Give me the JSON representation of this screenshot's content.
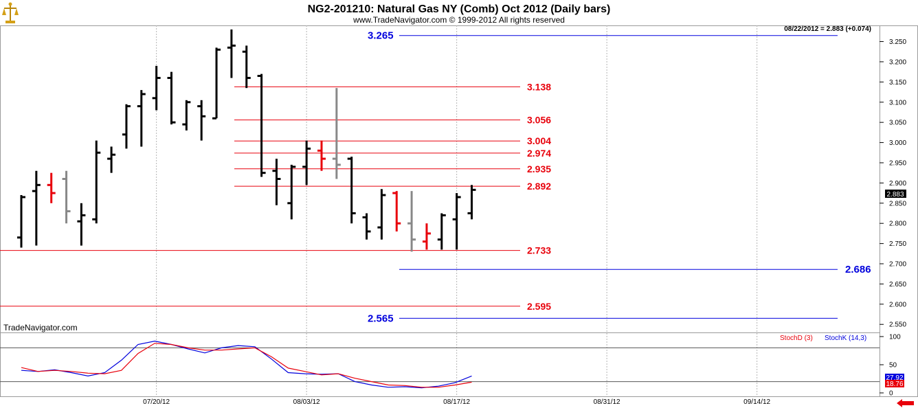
{
  "header": {
    "title": "NG2-201210:  Natural Gas NY (Comb) Oct 2012  (Daily bars)",
    "copyright": "www.TradeNavigator.com © 1999-2012 All rights reserved",
    "last_quote": "08/22/2012 = 2.883 (+0.074)",
    "watermark": "TradeNavigator.com",
    "last_price_tag": "2.883"
  },
  "colors": {
    "up": "#000000",
    "neutral": "#888888",
    "down": "#e8000b",
    "blue_level": "#0000dd",
    "red_level": "#e8000b",
    "stoch_k": "#0000dd",
    "stoch_d": "#e8000b",
    "grid": "#b4b4b4"
  },
  "chart_data": [
    {
      "type": "ohlc",
      "title": "NG2-201210:  Natural Gas NY (Comb) Oct 2012  (Daily bars)",
      "x_tick_labels": [
        "07/20/12",
        "08/03/12",
        "08/17/12",
        "08/31/12",
        "09/14/12"
      ],
      "y_tick_labels": [
        "2.550",
        "2.600",
        "2.650",
        "2.700",
        "2.750",
        "2.800",
        "2.850",
        "2.900",
        "2.950",
        "3.000",
        "3.050",
        "3.100",
        "3.150",
        "3.200",
        "3.250"
      ],
      "ylim": [
        2.53,
        3.29
      ],
      "grid": true,
      "bars": [
        {
          "date": "07/09/12",
          "o": 2.765,
          "h": 2.87,
          "l": 2.74,
          "c": 2.865,
          "color": "black"
        },
        {
          "date": "07/10/12",
          "o": 2.88,
          "h": 2.93,
          "l": 2.745,
          "c": 2.895,
          "color": "black"
        },
        {
          "date": "07/11/12",
          "o": 2.895,
          "h": 2.925,
          "l": 2.85,
          "c": 2.875,
          "color": "red"
        },
        {
          "date": "07/12/12",
          "o": 2.91,
          "h": 2.93,
          "l": 2.8,
          "c": 2.83,
          "color": "gray"
        },
        {
          "date": "07/13/12",
          "o": 2.805,
          "h": 2.85,
          "l": 2.745,
          "c": 2.82,
          "color": "black"
        },
        {
          "date": "07/16/12",
          "o": 2.81,
          "h": 3.005,
          "l": 2.8,
          "c": 2.975,
          "color": "black"
        },
        {
          "date": "07/17/12",
          "o": 2.96,
          "h": 2.99,
          "l": 2.925,
          "c": 2.97,
          "color": "black"
        },
        {
          "date": "07/18/12",
          "o": 3.02,
          "h": 3.095,
          "l": 2.985,
          "c": 3.09,
          "color": "black"
        },
        {
          "date": "07/19/12",
          "o": 3.09,
          "h": 3.13,
          "l": 2.99,
          "c": 3.12,
          "color": "black"
        },
        {
          "date": "07/20/12",
          "o": 3.11,
          "h": 3.19,
          "l": 3.08,
          "c": 3.16,
          "color": "black"
        },
        {
          "date": "07/23/12",
          "o": 3.16,
          "h": 3.175,
          "l": 3.045,
          "c": 3.05,
          "color": "black"
        },
        {
          "date": "07/24/12",
          "o": 3.045,
          "h": 3.105,
          "l": 3.03,
          "c": 3.1,
          "color": "black"
        },
        {
          "date": "07/25/12",
          "o": 3.09,
          "h": 3.105,
          "l": 3.005,
          "c": 3.065,
          "color": "black"
        },
        {
          "date": "07/26/12",
          "o": 3.06,
          "h": 3.235,
          "l": 3.06,
          "c": 3.23,
          "color": "black"
        },
        {
          "date": "07/27/12",
          "o": 3.235,
          "h": 3.28,
          "l": 3.16,
          "c": 3.24,
          "color": "black"
        },
        {
          "date": "07/30/12",
          "o": 3.225,
          "h": 3.24,
          "l": 3.135,
          "c": 3.16,
          "color": "black"
        },
        {
          "date": "07/31/12",
          "o": 3.165,
          "h": 3.17,
          "l": 2.915,
          "c": 2.925,
          "color": "black"
        },
        {
          "date": "08/01/12",
          "o": 2.93,
          "h": 2.96,
          "l": 2.845,
          "c": 2.91,
          "color": "black"
        },
        {
          "date": "08/02/12",
          "o": 2.85,
          "h": 2.945,
          "l": 2.81,
          "c": 2.94,
          "color": "black"
        },
        {
          "date": "08/03/12",
          "o": 2.94,
          "h": 3.005,
          "l": 2.895,
          "c": 2.985,
          "color": "black"
        },
        {
          "date": "08/06/12",
          "o": 2.98,
          "h": 3.005,
          "l": 2.93,
          "c": 2.96,
          "color": "red"
        },
        {
          "date": "08/07/12",
          "o": 2.96,
          "h": 3.135,
          "l": 2.91,
          "c": 2.945,
          "color": "gray"
        },
        {
          "date": "08/08/12",
          "o": 2.96,
          "h": 2.965,
          "l": 2.8,
          "c": 2.825,
          "color": "black"
        },
        {
          "date": "08/09/12",
          "o": 2.815,
          "h": 2.825,
          "l": 2.76,
          "c": 2.78,
          "color": "black"
        },
        {
          "date": "08/10/12",
          "o": 2.79,
          "h": 2.885,
          "l": 2.76,
          "c": 2.87,
          "color": "black"
        },
        {
          "date": "08/13/12",
          "o": 2.875,
          "h": 2.88,
          "l": 2.78,
          "c": 2.8,
          "color": "red"
        },
        {
          "date": "08/14/12",
          "o": 2.8,
          "h": 2.88,
          "l": 2.73,
          "c": 2.76,
          "color": "gray"
        },
        {
          "date": "08/15/12",
          "o": 2.755,
          "h": 2.8,
          "l": 2.735,
          "c": 2.775,
          "color": "red"
        },
        {
          "date": "08/16/12",
          "o": 2.76,
          "h": 2.825,
          "l": 2.735,
          "c": 2.82,
          "color": "black"
        },
        {
          "date": "08/17/12",
          "o": 2.81,
          "h": 2.875,
          "l": 2.735,
          "c": 2.865,
          "color": "black"
        },
        {
          "date": "08/20/12",
          "o": 2.825,
          "h": 2.895,
          "l": 2.81,
          "c": 2.883,
          "color": "black"
        }
      ]
    },
    {
      "type": "table",
      "horizontal_levels_red": [
        {
          "value": 3.138,
          "label": "3.138"
        },
        {
          "value": 3.056,
          "label": "3.056"
        },
        {
          "value": 3.004,
          "label": "3.004"
        },
        {
          "value": 2.974,
          "label": "2.974"
        },
        {
          "value": 2.935,
          "label": "2.935"
        },
        {
          "value": 2.892,
          "label": "2.892"
        },
        {
          "value": 2.733,
          "label": "2.733"
        },
        {
          "value": 2.595,
          "label": "2.595"
        }
      ],
      "horizontal_levels_blue": [
        {
          "value": 3.265,
          "label": "3.265"
        },
        {
          "value": 2.686,
          "label": "2.686"
        },
        {
          "value": 2.565,
          "label": "2.565"
        }
      ]
    },
    {
      "type": "line",
      "legend": [
        "StochD (3)",
        "StochK (14,3)"
      ],
      "y_tick_labels": [
        "0",
        "50",
        "100"
      ],
      "ylim": [
        0,
        100
      ],
      "guides": [
        80,
        20
      ],
      "last_values": [
        "27.92",
        "18.76"
      ],
      "series": [
        {
          "name": "StochK (14,3)",
          "values": [
            40,
            38,
            41,
            36,
            30,
            36,
            58,
            86,
            92,
            86,
            78,
            71,
            80,
            84,
            82,
            60,
            36,
            34,
            33,
            34,
            20,
            14,
            10,
            11,
            9,
            12,
            18,
            30
          ]
        },
        {
          "name": "StochD (3)",
          "values": [
            45,
            38,
            40,
            38,
            35,
            34,
            40,
            70,
            88,
            86,
            80,
            76,
            76,
            78,
            80,
            64,
            44,
            38,
            32,
            34,
            26,
            20,
            14,
            13,
            10,
            10,
            14,
            19
          ]
        }
      ]
    }
  ]
}
